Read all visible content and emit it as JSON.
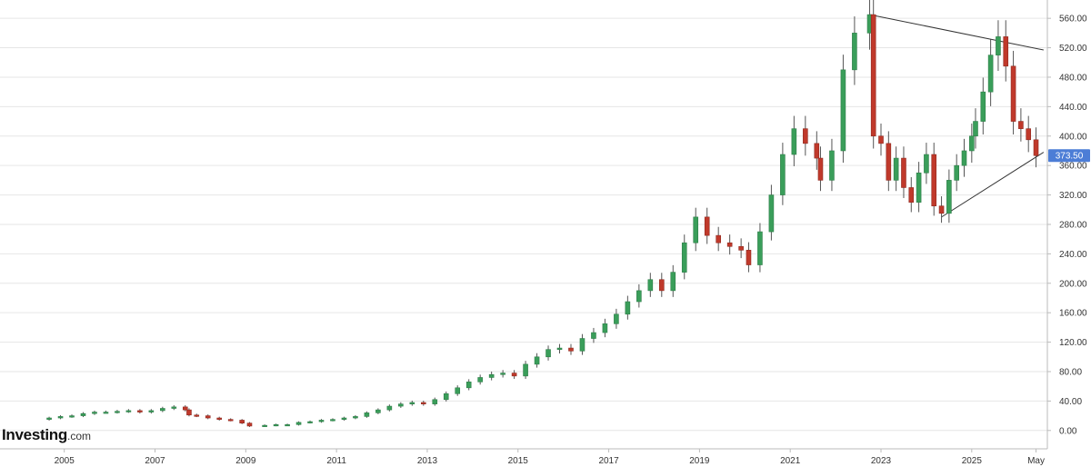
{
  "brand": {
    "name": "Investing",
    "suffix": ".com"
  },
  "colors": {
    "up": "#3a9e5a",
    "down": "#c0392b",
    "wick": "#555555",
    "grid": "#e6e6e6",
    "axis": "#bbbbbb",
    "trendline": "#333333",
    "last_price_bg": "#4c7dd6"
  },
  "chart_data": {
    "type": "candlestick",
    "interval": "monthly",
    "title": "",
    "xlabel": "",
    "ylabel": "",
    "ylim": [
      -20,
      575
    ],
    "y_ticks": [
      0,
      40,
      80,
      120,
      160,
      200,
      240,
      280,
      320,
      360,
      400,
      440,
      480,
      520,
      560
    ],
    "y_tick_labels": [
      "0.00",
      "40.00",
      "80.00",
      "120.00",
      "160.00",
      "200.00",
      "240.00",
      "280.00",
      "320.00",
      "360.00",
      "400.00",
      "440.00",
      "480.00",
      "520.00",
      "560.00"
    ],
    "x_range": [
      "2003-08",
      "2026-09"
    ],
    "x_ticks": [
      {
        "date": "2005-01",
        "label": "2005"
      },
      {
        "date": "2007-01",
        "label": "2007"
      },
      {
        "date": "2009-01",
        "label": "2009"
      },
      {
        "date": "2011-01",
        "label": "2011"
      },
      {
        "date": "2013-01",
        "label": "2013"
      },
      {
        "date": "2015-01",
        "label": "2015"
      },
      {
        "date": "2017-01",
        "label": "2017"
      },
      {
        "date": "2019-01",
        "label": "2019"
      },
      {
        "date": "2021-01",
        "label": "2021"
      },
      {
        "date": "2023-01",
        "label": "2023"
      },
      {
        "date": "2025-01",
        "label": "2025"
      },
      {
        "date": "2026-06",
        "label": "May"
      }
    ],
    "grid": true,
    "last_price": 373.5,
    "last_price_label": "373.50",
    "candles_close": [
      [
        "2004-06",
        15
      ],
      [
        "2004-09",
        17
      ],
      [
        "2004-12",
        19
      ],
      [
        "2005-03",
        20
      ],
      [
        "2005-06",
        23
      ],
      [
        "2005-09",
        25
      ],
      [
        "2005-12",
        25
      ],
      [
        "2006-03",
        26
      ],
      [
        "2006-06",
        27
      ],
      [
        "2006-09",
        25
      ],
      [
        "2006-12",
        27
      ],
      [
        "2007-03",
        30
      ],
      [
        "2007-06",
        32
      ],
      [
        "2007-09",
        28
      ],
      [
        "2007-10",
        21
      ],
      [
        "2007-12",
        20
      ],
      [
        "2008-03",
        17
      ],
      [
        "2008-06",
        15
      ],
      [
        "2008-09",
        14
      ],
      [
        "2008-12",
        10
      ],
      [
        "2009-02",
        6
      ],
      [
        "2009-06",
        7
      ],
      [
        "2009-09",
        8
      ],
      [
        "2009-12",
        8
      ],
      [
        "2010-03",
        11
      ],
      [
        "2010-06",
        12
      ],
      [
        "2010-09",
        14
      ],
      [
        "2010-12",
        15
      ],
      [
        "2011-03",
        17
      ],
      [
        "2011-06",
        19
      ],
      [
        "2011-09",
        24
      ],
      [
        "2011-12",
        28
      ],
      [
        "2012-03",
        33
      ],
      [
        "2012-06",
        36
      ],
      [
        "2012-09",
        38
      ],
      [
        "2012-12",
        36
      ],
      [
        "2013-03",
        42
      ],
      [
        "2013-06",
        50
      ],
      [
        "2013-09",
        58
      ],
      [
        "2013-12",
        66
      ],
      [
        "2014-03",
        72
      ],
      [
        "2014-06",
        76
      ],
      [
        "2014-09",
        78
      ],
      [
        "2014-12",
        74
      ],
      [
        "2015-03",
        90
      ],
      [
        "2015-06",
        100
      ],
      [
        "2015-09",
        110
      ],
      [
        "2015-12",
        112
      ],
      [
        "2016-03",
        108
      ],
      [
        "2016-06",
        125
      ],
      [
        "2016-09",
        133
      ],
      [
        "2016-12",
        145
      ],
      [
        "2017-03",
        158
      ],
      [
        "2017-06",
        175
      ],
      [
        "2017-09",
        190
      ],
      [
        "2017-12",
        205
      ],
      [
        "2018-03",
        190
      ],
      [
        "2018-06",
        215
      ],
      [
        "2018-09",
        255
      ],
      [
        "2018-12",
        290
      ],
      [
        "2019-03",
        265
      ],
      [
        "2019-06",
        255
      ],
      [
        "2019-09",
        250
      ],
      [
        "2019-12",
        245
      ],
      [
        "2020-02",
        225
      ],
      [
        "2020-05",
        270
      ],
      [
        "2020-08",
        320
      ],
      [
        "2020-11",
        375
      ],
      [
        "2021-02",
        410
      ],
      [
        "2021-05",
        390
      ],
      [
        "2021-08",
        370
      ],
      [
        "2021-09",
        340
      ],
      [
        "2021-12",
        380
      ],
      [
        "2022-03",
        490
      ],
      [
        "2022-06",
        540
      ],
      [
        "2022-10",
        565
      ],
      [
        "2022-11",
        400
      ],
      [
        "2023-01",
        390
      ],
      [
        "2023-03",
        340
      ],
      [
        "2023-05",
        370
      ],
      [
        "2023-07",
        330
      ],
      [
        "2023-09",
        310
      ],
      [
        "2023-11",
        350
      ],
      [
        "2024-01",
        375
      ],
      [
        "2024-03",
        305
      ],
      [
        "2024-05",
        295
      ],
      [
        "2024-07",
        340
      ],
      [
        "2024-09",
        360
      ],
      [
        "2024-11",
        380
      ],
      [
        "2025-01",
        400
      ],
      [
        "2025-02",
        420
      ],
      [
        "2025-04",
        460
      ],
      [
        "2025-06",
        510
      ],
      [
        "2025-08",
        535
      ],
      [
        "2025-10",
        495
      ],
      [
        "2025-12",
        420
      ],
      [
        "2026-02",
        410
      ],
      [
        "2026-04",
        395
      ],
      [
        "2026-06",
        373.5
      ]
    ],
    "trendlines": [
      {
        "from": [
          "2022-10",
          565
        ],
        "to": [
          "2026-08",
          517
        ]
      },
      {
        "from": [
          "2024-05",
          290
        ],
        "to": [
          "2026-08",
          378
        ]
      }
    ]
  }
}
